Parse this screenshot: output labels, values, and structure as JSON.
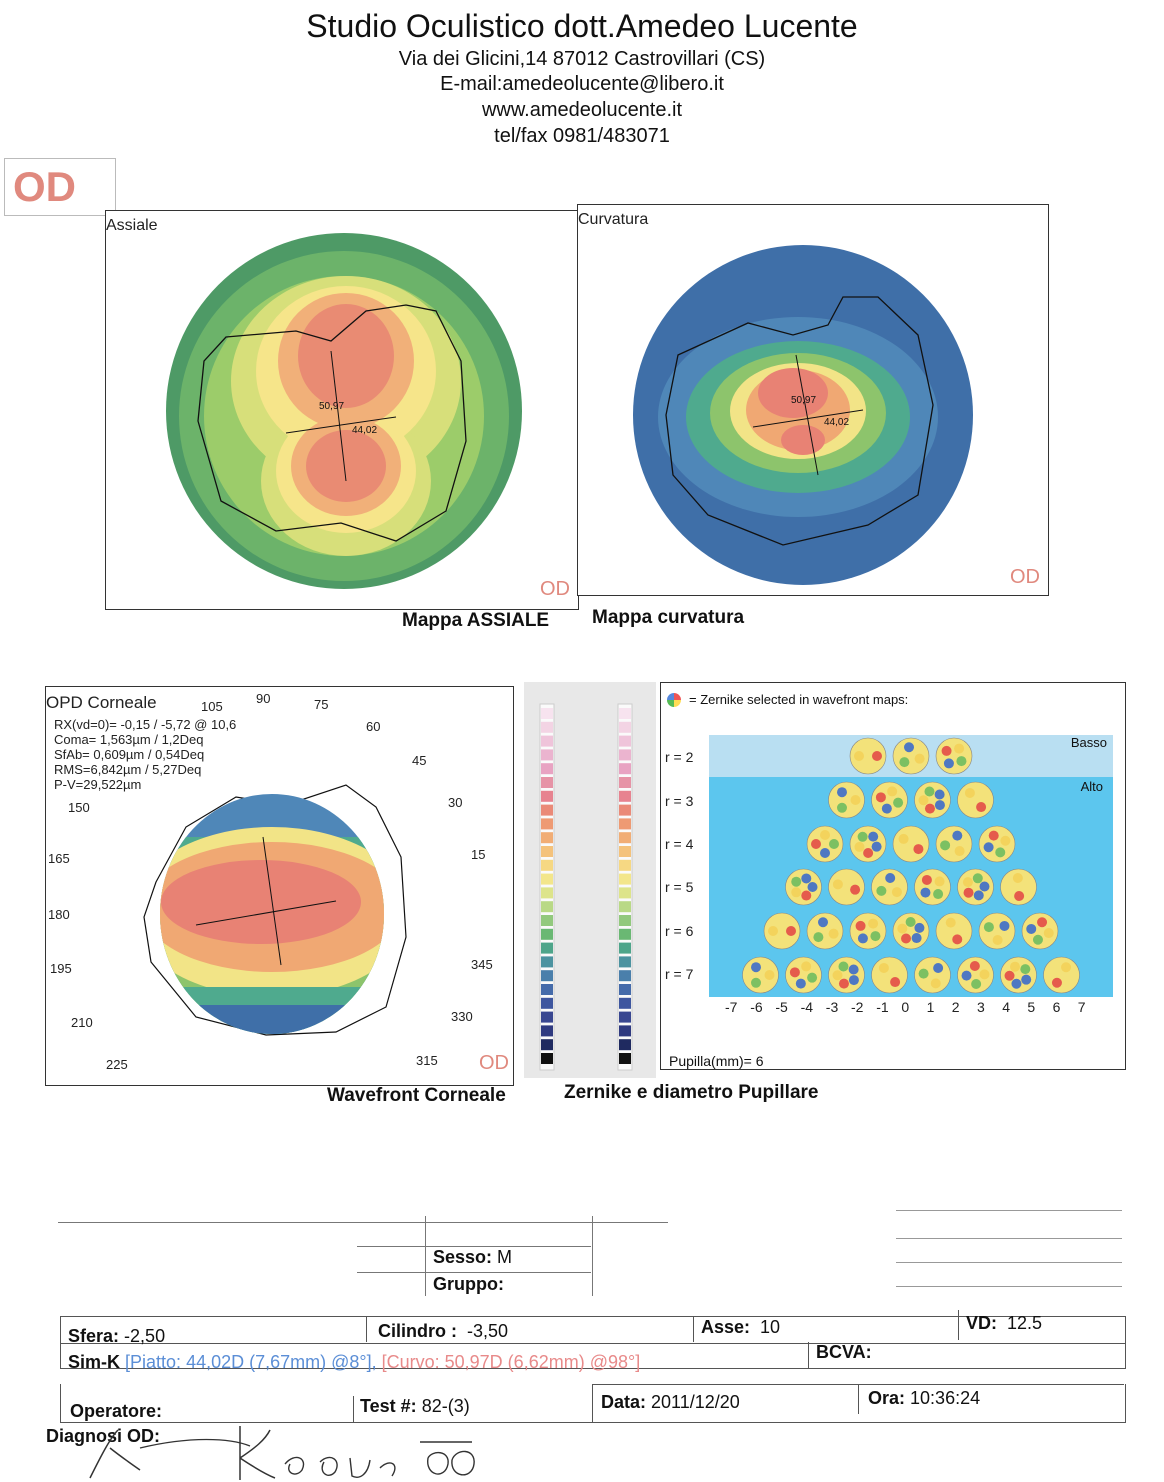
{
  "header": {
    "title": "Studio Oculistico dott.Amedeo Lucente",
    "address": "Via dei Glicini,14  87012 Castrovillari (CS)",
    "email": "E-mail:amedeolucente@libero.it",
    "website": "www.amedeolucente.it",
    "phone": "tel/fax 0981/483071"
  },
  "eye_badge": "OD",
  "maps": {
    "axial": {
      "label": "Assiale",
      "od": "OD",
      "caption": "Mappa ASSIALE",
      "k_value": "44,02",
      "center_value": "50,97"
    },
    "curvature": {
      "label": "Curvatura",
      "od": "OD",
      "caption": "Mappa curvatura",
      "k_value": "44,02",
      "center_value": "50,97"
    }
  },
  "wavefront": {
    "title": "OPD Corneale",
    "lines": [
      "RX(vd=0)= -0,15 / -5,72 @ 10,6",
      "Coma= 1,563µm / 1,2Deq",
      "SfAb= 0,609µm / 0,54Deq",
      "RMS=6,842µm / 5,27Deq",
      "P-V=29,522µm"
    ],
    "angles": [
      "105",
      "90",
      "75",
      "60",
      "45",
      "30",
      "15",
      "345",
      "330",
      "315",
      "225",
      "210",
      "195",
      "180",
      "165",
      "150"
    ],
    "od": "OD",
    "caption": "Wavefront Corneale"
  },
  "zernike": {
    "legend": "= Zernike selected in wavefront maps:",
    "basso": "Basso",
    "alto": "Alto",
    "orders": [
      "r = 2",
      "r = 3",
      "r = 4",
      "r = 5",
      "r = 6",
      "r = 7"
    ],
    "x_labels": [
      "-7",
      "-6",
      "-5",
      "-4",
      "-3",
      "-2",
      "-1",
      "0",
      "1",
      "2",
      "3",
      "4",
      "5",
      "6",
      "7"
    ],
    "pupil": "Pupilla(mm)= 6",
    "caption": "Zernike e diametro Pupillare"
  },
  "form": {
    "sesso_label": "Sesso:",
    "sesso_value": "M",
    "gruppo_label": "Gruppo:",
    "sfera_label": "Sfera:",
    "sfera_value": "-2,50",
    "cilindro_label": "Cilindro :",
    "cilindro_value": "-3,50",
    "asse_label": "Asse:",
    "asse_value": "10",
    "vd_label": "VD:",
    "vd_value": "12.5",
    "simk_label": "Sim-K",
    "piatto": "[Piatto: 44,02D (7,67mm) @8°],",
    "curvo": "[Curvo: 50,97D (6,62mm) @98°]",
    "bcva_label": "BCVA:",
    "operatore_label": "Operatore:",
    "test_label": "Test #:",
    "test_value": "82-(3)",
    "data_label": "Data:",
    "data_value": "2011/12/20",
    "ora_label": "Ora:",
    "ora_value": "10:36:24",
    "diagnosi_label": "Diagnosi OD:"
  },
  "colors": {
    "od_mark": "#e0897e",
    "piatto": "#5b8ed6",
    "curvo": "#e88a8a",
    "zernike_bg": "#5cc6ee"
  }
}
